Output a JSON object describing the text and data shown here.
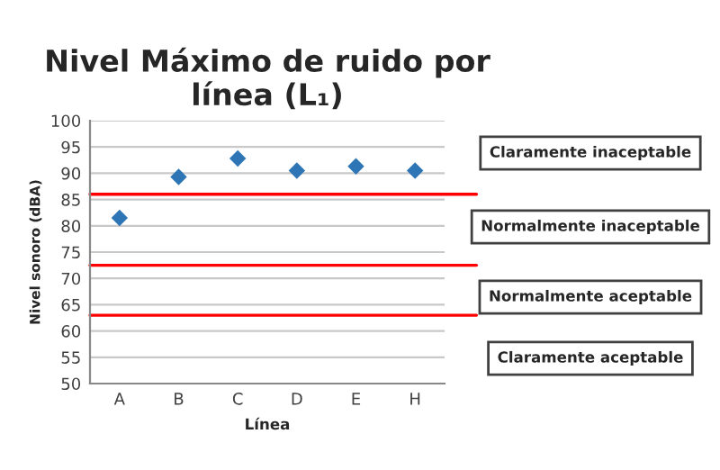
{
  "chart_data": {
    "type": "scatter",
    "title": "Nivel Máximo de ruido por línea (L₁)",
    "xlabel": "Línea",
    "ylabel": "Nivel sonoro (dBA)",
    "categories": [
      "A",
      "B",
      "C",
      "D",
      "E",
      "H"
    ],
    "series": [
      {
        "color": "#2e75b6",
        "values": [
          81.5,
          89.3,
          92.8,
          90.5,
          91.3,
          90.5
        ]
      }
    ],
    "marker": "diamond",
    "ylim": [
      50,
      100
    ],
    "yticks": [
      50,
      55,
      60,
      65,
      70,
      75,
      80,
      85,
      90,
      95,
      100
    ],
    "grid": "y",
    "legend": false,
    "ref_lines": [
      {
        "axis": "y",
        "value": 86,
        "color": "#ff0000"
      },
      {
        "axis": "y",
        "value": 72.5,
        "color": "#ff0000"
      },
      {
        "axis": "y",
        "value": 63,
        "color": "#ff0000"
      }
    ],
    "annotations": [
      "Claramente inaceptable",
      "Normalmente inaceptable",
      "Normalmente aceptable",
      "Claramente aceptable"
    ]
  }
}
